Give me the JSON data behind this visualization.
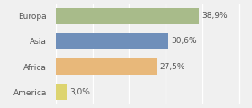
{
  "categories": [
    "Europa",
    "Asia",
    "Africa",
    "America"
  ],
  "values": [
    38.9,
    30.6,
    27.5,
    3.0
  ],
  "labels": [
    "38,9%",
    "30,6%",
    "27,5%",
    "3,0%"
  ],
  "bar_colors": [
    "#a8bb8a",
    "#6f8fba",
    "#e8b87a",
    "#ddd470"
  ],
  "background_color": "#f0f0f0",
  "xlim": [
    0,
    52
  ],
  "bar_height": 0.65,
  "label_fontsize": 6.5,
  "tick_fontsize": 6.5,
  "grid_color": "#ffffff",
  "grid_positions": [
    0,
    10,
    20,
    30,
    40,
    50
  ]
}
